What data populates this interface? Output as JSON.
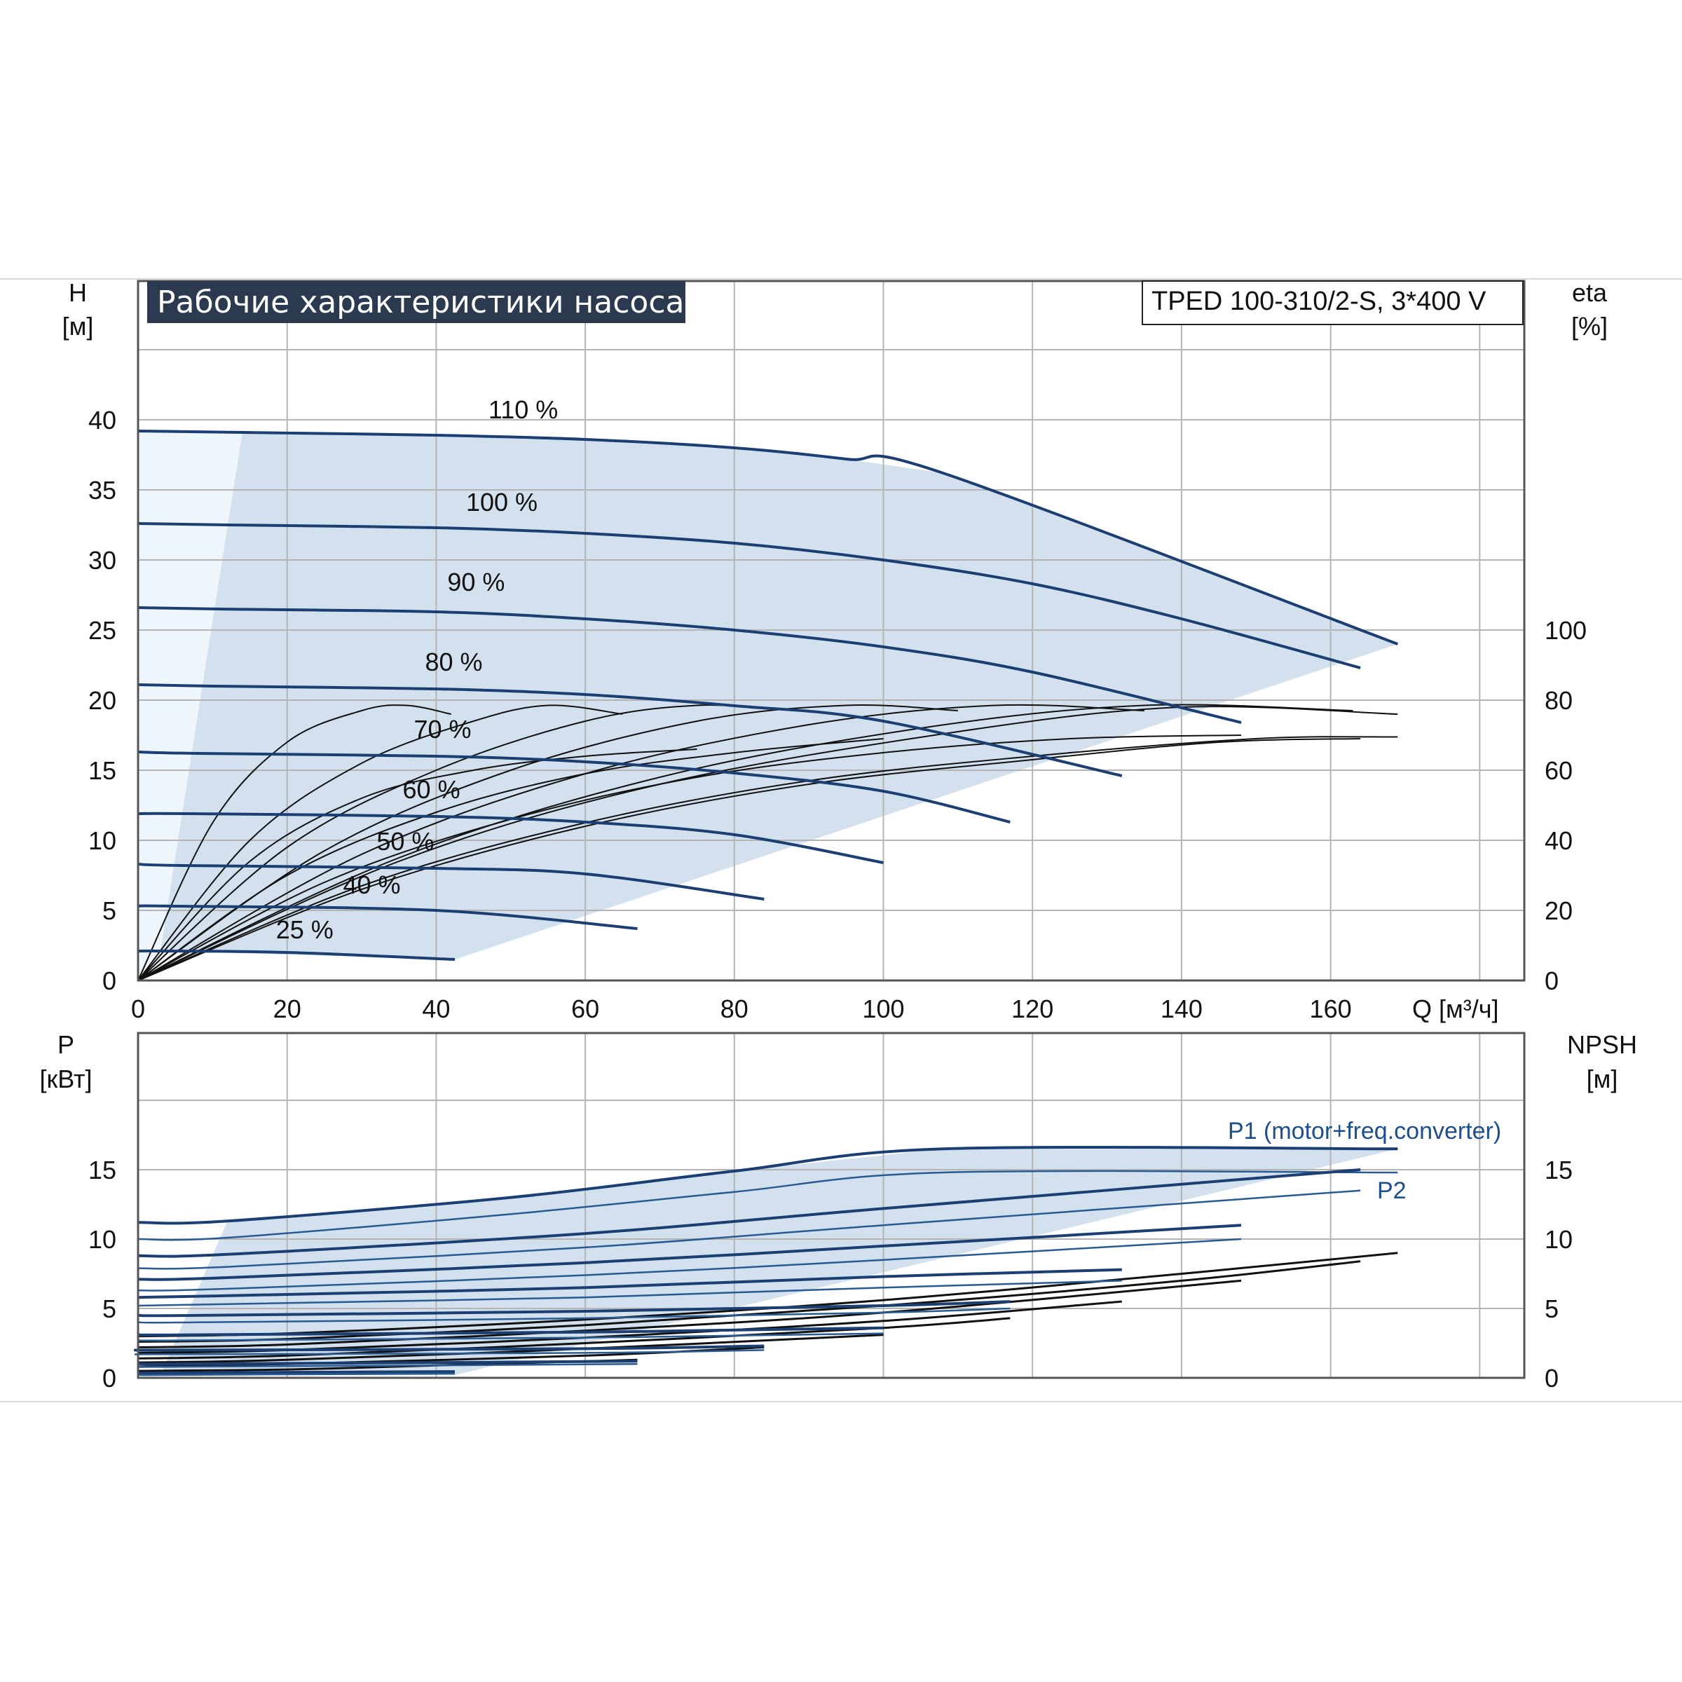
{
  "header": {
    "title": "Рабочие характеристики насоса",
    "model": "TPED 100-310/2-S, 3*400 V"
  },
  "chart_data": [
    {
      "id": "head",
      "type": "line",
      "xlabel": "Q [м³/ч]",
      "ylabel": "H",
      "ylabel_unit": "[м]",
      "y2label": "eta",
      "y2label_unit": "[%]",
      "xlim": [
        0,
        186
      ],
      "ylim": [
        0,
        45
      ],
      "y2lim": [
        0,
        100
      ],
      "x_ticks": [
        0,
        20,
        40,
        60,
        80,
        100,
        120,
        140,
        160
      ],
      "y_ticks": [
        0,
        5,
        10,
        15,
        20,
        25,
        30,
        35,
        40
      ],
      "y2_ticks": [
        0,
        20,
        40,
        60,
        80,
        100
      ],
      "grid": true,
      "operating_area_color": "#d3e0ee",
      "series": [
        {
          "name": "110 %",
          "x": [
            0,
            14,
            40,
            60,
            80,
            95,
            108,
            169
          ],
          "y": [
            39.2,
            39.1,
            38.9,
            38.6,
            38.0,
            37.2,
            36.2,
            24.0
          ]
        },
        {
          "name": "100 %",
          "x": [
            0,
            12,
            40,
            60,
            80,
            100,
            120,
            140,
            164
          ],
          "y": [
            32.6,
            32.5,
            32.3,
            31.9,
            31.2,
            30.0,
            28.3,
            25.8,
            22.3
          ]
        },
        {
          "name": "90 %",
          "x": [
            0,
            11,
            40,
            60,
            80,
            100,
            120,
            148
          ],
          "y": [
            26.6,
            26.5,
            26.3,
            25.8,
            25.0,
            23.8,
            22.0,
            18.4
          ]
        },
        {
          "name": "80 %",
          "x": [
            0,
            10,
            40,
            60,
            80,
            100,
            132
          ],
          "y": [
            21.1,
            21.0,
            20.8,
            20.4,
            19.6,
            18.5,
            14.6
          ]
        },
        {
          "name": "70 %",
          "x": [
            0,
            8,
            40,
            60,
            80,
            100,
            117
          ],
          "y": [
            16.3,
            16.2,
            16.0,
            15.6,
            14.8,
            13.5,
            11.3
          ]
        },
        {
          "name": "60 %",
          "x": [
            0,
            7,
            40,
            60,
            80,
            100
          ],
          "y": [
            11.9,
            11.9,
            11.7,
            11.3,
            10.4,
            8.4
          ]
        },
        {
          "name": "50 %",
          "x": [
            0,
            6,
            40,
            60,
            84
          ],
          "y": [
            8.3,
            8.2,
            8.0,
            7.6,
            5.8
          ]
        },
        {
          "name": "40 %",
          "x": [
            0,
            5,
            40,
            67
          ],
          "y": [
            5.3,
            5.3,
            5.0,
            3.7
          ]
        },
        {
          "name": "25 %",
          "x": [
            0,
            3,
            20,
            42.5
          ],
          "y": [
            2.1,
            2.1,
            2.0,
            1.5
          ]
        }
      ],
      "eta_curves": [
        {
          "x": [
            0,
            10,
            20,
            30,
            36,
            42
          ],
          "eta": [
            0,
            45,
            68,
            77,
            78.5,
            76
          ]
        },
        {
          "x": [
            0,
            15,
            30,
            45,
            55,
            65
          ],
          "eta": [
            0,
            40,
            62,
            74,
            78.5,
            76
          ]
        },
        {
          "x": [
            0,
            20,
            40,
            60,
            75,
            88
          ],
          "eta": [
            0,
            38,
            60,
            74,
            78.5,
            77
          ]
        },
        {
          "x": [
            0,
            25,
            50,
            75,
            95,
            110
          ],
          "eta": [
            0,
            37,
            60,
            74,
            78.5,
            77
          ]
        },
        {
          "x": [
            0,
            30,
            60,
            90,
            115,
            135
          ],
          "eta": [
            0,
            36,
            59,
            73,
            78.5,
            77
          ]
        },
        {
          "x": [
            0,
            35,
            70,
            105,
            135,
            163
          ],
          "eta": [
            0,
            35,
            58,
            72,
            78.5,
            77
          ]
        },
        {
          "x": [
            0,
            35,
            70,
            110,
            140,
            169
          ],
          "eta": [
            0,
            34,
            56,
            71,
            78.0,
            76
          ]
        },
        {
          "x": [
            0,
            15,
            30,
            45,
            60,
            75
          ],
          "eta": [
            0,
            34,
            52,
            60,
            64,
            66
          ]
        },
        {
          "x": [
            0,
            20,
            40,
            60,
            80,
            100
          ],
          "eta": [
            0,
            30,
            48,
            59,
            65,
            69
          ]
        },
        {
          "x": [
            0,
            25,
            50,
            75,
            100,
            125,
            148
          ],
          "eta": [
            0,
            28,
            46,
            58,
            65,
            69,
            70
          ]
        },
        {
          "x": [
            0,
            30,
            60,
            90,
            120,
            150,
            169
          ],
          "eta": [
            0,
            27,
            45,
            57,
            64,
            69,
            69.5
          ]
        },
        {
          "x": [
            0,
            30,
            60,
            90,
            120,
            145,
            164
          ],
          "eta": [
            0,
            26,
            44,
            56,
            63,
            68,
            69
          ]
        }
      ]
    },
    {
      "id": "power",
      "type": "line",
      "ylabel": "P",
      "ylabel_unit": "[кВт]",
      "y2label": "NPSH",
      "y2label_unit": "[м]",
      "xlim": [
        0,
        186
      ],
      "ylim": [
        0,
        20
      ],
      "y2lim": [
        0,
        20
      ],
      "y_ticks": [
        0,
        5,
        10,
        15
      ],
      "y2_ticks": [
        0,
        5,
        10,
        15
      ],
      "grid": true,
      "annotations": [
        "P1 (motor+freq.converter)",
        "P2"
      ],
      "series": [
        {
          "name": "P1 (motor+freq.converter)",
          "x": [
            0,
            12,
            50,
            80,
            108,
            169
          ],
          "y": [
            11.2,
            11.3,
            13.0,
            14.9,
            16.5,
            16.5
          ]
        },
        {
          "name": "",
          "x": [
            0,
            12,
            50,
            80,
            108,
            169
          ],
          "y": [
            10.0,
            10.1,
            11.8,
            13.4,
            14.8,
            14.8
          ]
        },
        {
          "name": "",
          "x": [
            0,
            12,
            60,
            100,
            164
          ],
          "y": [
            8.8,
            8.9,
            10.4,
            12.2,
            15.0
          ]
        },
        {
          "name": "P2",
          "x": [
            0,
            12,
            60,
            100,
            164
          ],
          "y": [
            7.9,
            8.0,
            9.4,
            11.0,
            13.5
          ]
        },
        {
          "name": "",
          "x": [
            0,
            11,
            60,
            100,
            148
          ],
          "y": [
            7.1,
            7.2,
            8.3,
            9.5,
            11.0
          ]
        },
        {
          "name": "",
          "x": [
            0,
            11,
            60,
            100,
            148
          ],
          "y": [
            6.3,
            6.4,
            7.4,
            8.5,
            10.0
          ]
        },
        {
          "name": "",
          "x": [
            0,
            10,
            60,
            100,
            132
          ],
          "y": [
            5.8,
            5.9,
            6.5,
            7.3,
            7.8
          ]
        },
        {
          "name": "",
          "x": [
            0,
            10,
            60,
            100,
            132
          ],
          "y": [
            5.2,
            5.3,
            5.8,
            6.5,
            7.0
          ]
        },
        {
          "name": "",
          "x": [
            0,
            8,
            60,
            100,
            117
          ],
          "y": [
            4.5,
            4.5,
            4.8,
            5.2,
            5.5
          ]
        },
        {
          "name": "",
          "x": [
            0,
            8,
            60,
            100,
            117
          ],
          "y": [
            4.0,
            4.0,
            4.3,
            4.7,
            5.0
          ]
        },
        {
          "name": "",
          "x": [
            0,
            7,
            60,
            100
          ],
          "y": [
            3.1,
            3.1,
            3.3,
            3.6
          ]
        },
        {
          "name": "",
          "x": [
            0,
            7,
            60,
            100
          ],
          "y": [
            2.7,
            2.7,
            2.9,
            3.2
          ]
        },
        {
          "name": "",
          "x": [
            0,
            6,
            60,
            84
          ],
          "y": [
            2.0,
            2.0,
            2.1,
            2.3
          ]
        },
        {
          "name": "",
          "x": [
            0,
            6,
            60,
            84
          ],
          "y": [
            1.7,
            1.7,
            1.8,
            2.0
          ]
        },
        {
          "name": "",
          "x": [
            0,
            5,
            40,
            67
          ],
          "y": [
            1.0,
            1.0,
            1.1,
            1.2
          ]
        },
        {
          "name": "",
          "x": [
            0,
            5,
            40,
            67
          ],
          "y": [
            0.8,
            0.8,
            0.9,
            1.0
          ]
        },
        {
          "name": "",
          "x": [
            0,
            3,
            20,
            42.5
          ],
          "y": [
            0.35,
            0.35,
            0.4,
            0.45
          ]
        },
        {
          "name": "",
          "x": [
            0,
            3,
            20,
            42.5
          ],
          "y": [
            0.2,
            0.2,
            0.25,
            0.3
          ]
        }
      ],
      "npsh_curves": [
        {
          "x": [
            0,
            20,
            60,
            100,
            140,
            169
          ],
          "y": [
            3.0,
            3.2,
            4.2,
            5.6,
            7.5,
            9.0
          ]
        },
        {
          "x": [
            0,
            20,
            60,
            100,
            140,
            164
          ],
          "y": [
            2.6,
            2.8,
            3.8,
            5.2,
            7.0,
            8.4
          ]
        },
        {
          "x": [
            0,
            20,
            60,
            100,
            148
          ],
          "y": [
            2.2,
            2.4,
            3.4,
            4.7,
            7.0
          ]
        },
        {
          "x": [
            0,
            20,
            60,
            100,
            132
          ],
          "y": [
            1.8,
            2.0,
            2.9,
            4.1,
            5.5
          ]
        },
        {
          "x": [
            0,
            20,
            60,
            100,
            117
          ],
          "y": [
            1.4,
            1.6,
            2.5,
            3.6,
            4.3
          ]
        },
        {
          "x": [
            0,
            20,
            60,
            100
          ],
          "y": [
            1.1,
            1.3,
            2.1,
            3.1
          ]
        },
        {
          "x": [
            0,
            20,
            60,
            84
          ],
          "y": [
            0.8,
            1.0,
            1.6,
            2.2
          ]
        },
        {
          "x": [
            0,
            20,
            40,
            67
          ],
          "y": [
            0.5,
            0.6,
            0.9,
            1.3
          ]
        }
      ]
    }
  ]
}
